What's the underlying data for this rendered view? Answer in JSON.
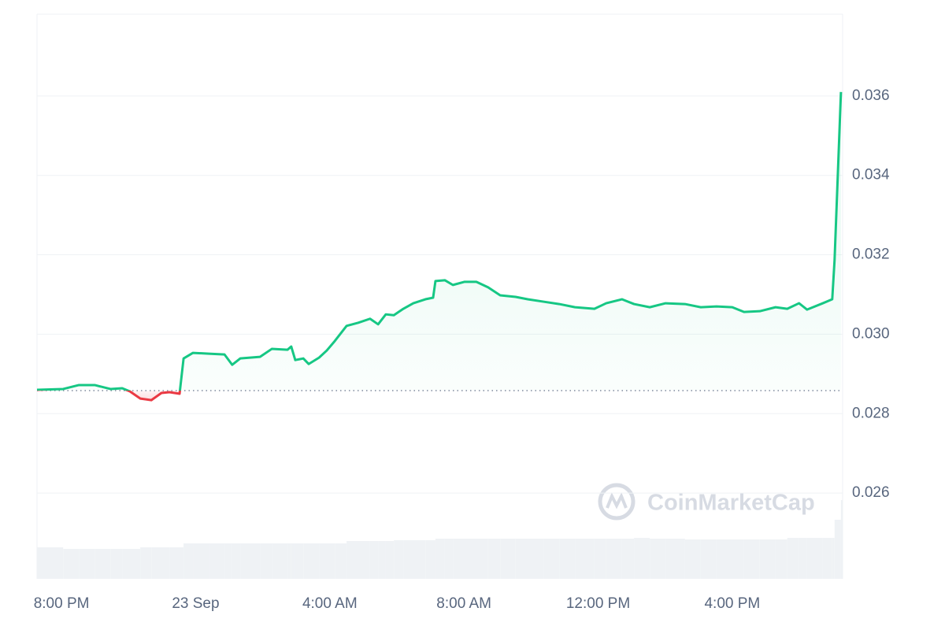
{
  "chart_data": {
    "type": "line",
    "watermark": "CoinMarketCap",
    "x": [
      -0.73,
      0.05,
      0.52,
      0.99,
      1.46,
      1.81,
      2.04,
      2.35,
      2.68,
      2.98,
      3.22,
      3.52,
      3.64,
      3.92,
      4.39,
      4.86,
      5.09,
      5.33,
      5.92,
      6.27,
      6.74,
      6.85,
      6.97,
      7.21,
      7.37,
      7.68,
      7.91,
      8.15,
      8.5,
      8.85,
      9.2,
      9.44,
      9.67,
      9.91,
      10.19,
      10.49,
      10.85,
      11.08,
      11.15,
      11.43,
      11.67,
      12.02,
      12.37,
      12.72,
      13.08,
      13.54,
      13.9,
      14.37,
      14.84,
      15.31,
      15.89,
      16.24,
      16.71,
      17.07,
      17.54,
      18.01,
      18.59,
      19.06,
      19.53,
      20.0,
      20.35,
      20.82,
      21.29,
      21.64,
      21.99,
      22.23,
      22.7,
      22.98,
      23.05,
      23.24
    ],
    "values": [
      0.0286,
      0.02862,
      0.02872,
      0.02872,
      0.02862,
      0.02864,
      0.02856,
      0.02838,
      0.02834,
      0.02852,
      0.02854,
      0.0285,
      0.02939,
      0.02953,
      0.02951,
      0.02949,
      0.02923,
      0.02939,
      0.02943,
      0.02963,
      0.02961,
      0.02969,
      0.02935,
      0.02939,
      0.02925,
      0.02941,
      0.02959,
      0.02983,
      0.03021,
      0.03029,
      0.03039,
      0.03025,
      0.0305,
      0.03048,
      0.03064,
      0.03078,
      0.03088,
      0.03092,
      0.03134,
      0.03136,
      0.03124,
      0.03132,
      0.03132,
      0.03118,
      0.03098,
      0.03094,
      0.03088,
      0.03082,
      0.03076,
      0.03068,
      0.03064,
      0.03078,
      0.03088,
      0.03076,
      0.03068,
      0.03078,
      0.03076,
      0.03068,
      0.0307,
      0.03068,
      0.03056,
      0.03058,
      0.03068,
      0.03064,
      0.03078,
      0.03062,
      0.03078,
      0.03088,
      0.03187,
      0.0361
    ],
    "volume": [
      40,
      38,
      38,
      38,
      38,
      38,
      38,
      40,
      40,
      40,
      40,
      40,
      45,
      45,
      45,
      45,
      45,
      45,
      45,
      45,
      45,
      45,
      45,
      45,
      45,
      45,
      45,
      45,
      48,
      48,
      48,
      48,
      48,
      49,
      49,
      49,
      49,
      49,
      51,
      51,
      51,
      51,
      51,
      51,
      51,
      51,
      51,
      51,
      51,
      51,
      51,
      51,
      51,
      52,
      51,
      51,
      50,
      50,
      50,
      50,
      50,
      50,
      50,
      52,
      52,
      52,
      52,
      52,
      75,
      100
    ],
    "vlim": [
      0,
      100
    ],
    "baseline": 0.02858,
    "up_color": "#16c784",
    "down_color": "#ea3943",
    "volume_color": "#eff2f5",
    "xlim": [
      -0.73,
      23.29
    ],
    "xticks": [
      {
        "value": 0,
        "label": "8:00 PM"
      },
      {
        "value": 4,
        "label": "23 Sep"
      },
      {
        "value": 8,
        "label": "4:00 AM"
      },
      {
        "value": 12,
        "label": "8:00 AM"
      },
      {
        "value": 16,
        "label": "12:00 PM"
      },
      {
        "value": 20,
        "label": "4:00 PM"
      }
    ],
    "ylim": [
      0.02384,
      0.03806
    ],
    "yticks": [
      0.026,
      0.028,
      {
        "value": 0.03,
        "label": "0.030"
      },
      0.032,
      0.034,
      0.036
    ],
    "grid": true
  }
}
